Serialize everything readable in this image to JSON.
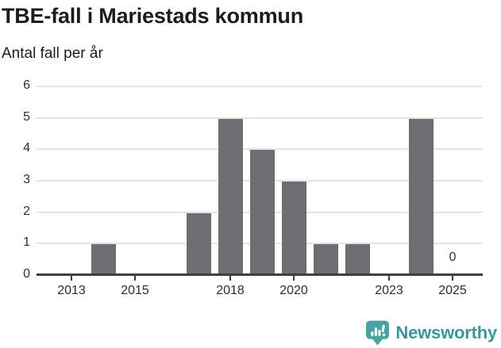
{
  "header": {
    "title": "TBE-fall i Mariestads kommun",
    "subtitle": "Antal fall per år"
  },
  "chart_data": {
    "type": "bar",
    "title": "TBE-fall i Mariestads kommun",
    "ylabel": "Antal fall per år",
    "categories": [
      2013,
      2014,
      2015,
      2016,
      2017,
      2018,
      2019,
      2020,
      2021,
      2022,
      2023,
      2024,
      2025
    ],
    "values": [
      0,
      1,
      0,
      0,
      2,
      5,
      4,
      3,
      1,
      1,
      0,
      5,
      0
    ],
    "x_tick_labels": [
      "2013",
      "2015",
      "2018",
      "2020",
      "2023",
      "2025"
    ],
    "y_ticks": [
      0,
      1,
      2,
      3,
      4,
      5,
      6
    ],
    "ylim": [
      0,
      6
    ],
    "grid": "horizontal",
    "legend": "none",
    "annotations": [
      {
        "year": 2025,
        "text": "0"
      }
    ],
    "colors": {
      "bar": "#6e6d73",
      "gridline": "#e4e4e4",
      "axis": "#3f3f3f",
      "tick_label": "#2e2e2e"
    }
  },
  "footer": {
    "brand": "Newsworthy",
    "logo_icon": "bar-chart-speech-bubble-icon",
    "brand_text_color": "#3b959a",
    "icon_color": "#47a4a0"
  }
}
